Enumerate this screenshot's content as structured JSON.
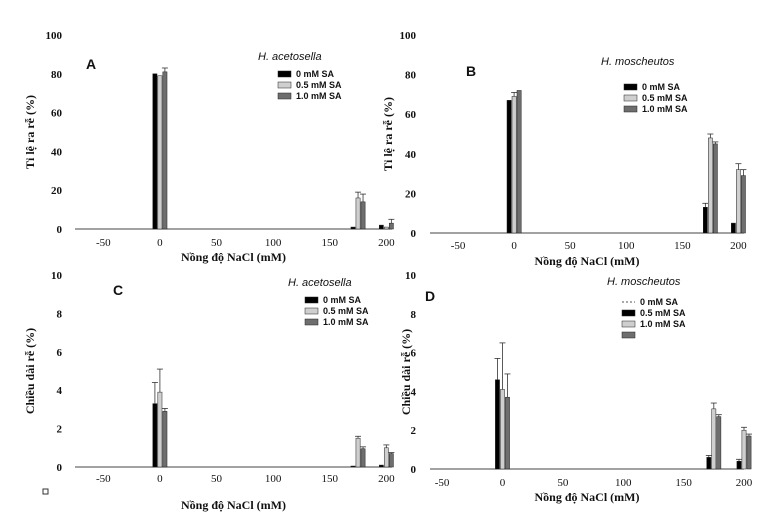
{
  "chart_data": [
    {
      "type": "bar",
      "panel_label": "A",
      "title": "H. acetosella",
      "xlabel": "Nồng độ NaCl (mM)",
      "ylabel": "Tỉ lệ ra rễ (%)",
      "xlim": [
        -75,
        205
      ],
      "ylim": [
        0,
        100
      ],
      "xticks": [
        -50,
        0,
        50,
        100,
        150,
        200
      ],
      "yticks": [
        0,
        20,
        40,
        60,
        80,
        100
      ],
      "legend_position": "top-right",
      "colors": [
        "#000000",
        "#cfcfcf",
        "#6e6e6e"
      ],
      "categories": [
        0,
        175,
        200
      ],
      "series": [
        {
          "name": "0 mM SA",
          "values": [
            80,
            1,
            2
          ],
          "errors": [
            0,
            0,
            0
          ]
        },
        {
          "name": "0.5 mM SA",
          "values": [
            79,
            16,
            1
          ],
          "errors": [
            0,
            3,
            0
          ]
        },
        {
          "name": "1.0 mM SA",
          "values": [
            81,
            14,
            3
          ],
          "errors": [
            2,
            4,
            2
          ]
        }
      ]
    },
    {
      "type": "bar",
      "panel_label": "B",
      "title": "H. moscheutos",
      "xlabel": "Nồng độ NaCl (mM)",
      "ylabel": "Tỉ lệ ra rễ (%)",
      "xlim": [
        -75,
        205
      ],
      "ylim": [
        0,
        100
      ],
      "xticks": [
        -50,
        0,
        50,
        100,
        150,
        200
      ],
      "yticks": [
        0,
        20,
        40,
        60,
        80,
        100
      ],
      "legend_position": "top-right",
      "colors": [
        "#000000",
        "#cfcfcf",
        "#6e6e6e"
      ],
      "categories": [
        0,
        175,
        200
      ],
      "series": [
        {
          "name": "0 mM SA",
          "values": [
            67,
            13,
            5
          ],
          "errors": [
            0,
            2,
            0
          ]
        },
        {
          "name": "0.5 mM SA",
          "values": [
            69,
            48,
            32
          ],
          "errors": [
            2,
            2,
            3
          ]
        },
        {
          "name": "1.0 mM SA",
          "values": [
            72,
            45,
            29
          ],
          "errors": [
            0,
            1,
            3
          ]
        }
      ]
    },
    {
      "type": "bar",
      "panel_label": "C",
      "title": "H. acetosella",
      "xlabel": "Nồng độ NaCl (mM)",
      "ylabel": "Chiều dài rễ (%)",
      "xlim": [
        -75,
        205
      ],
      "ylim": [
        0,
        10
      ],
      "xticks": [
        -50,
        0,
        50,
        100,
        150,
        200
      ],
      "yticks": [
        0,
        2,
        4,
        6,
        8,
        10
      ],
      "legend_position": "top-right",
      "colors": [
        "#000000",
        "#cfcfcf",
        "#6e6e6e"
      ],
      "categories": [
        0,
        175,
        200
      ],
      "series": [
        {
          "name": "0 mM SA",
          "values": [
            3.3,
            0.05,
            0.1
          ],
          "errors": [
            1.1,
            0,
            0
          ]
        },
        {
          "name": "0.5 mM SA",
          "values": [
            3.9,
            1.5,
            1.0
          ],
          "errors": [
            1.2,
            0.1,
            0.15
          ]
        },
        {
          "name": "1.0 mM SA",
          "values": [
            2.9,
            0.95,
            0.7
          ],
          "errors": [
            0.15,
            0.1,
            0.05
          ]
        }
      ]
    },
    {
      "type": "bar",
      "panel_label": "D",
      "title": "H. moscheutos",
      "xlabel": "Nồng độ NaCl (mM)",
      "ylabel": "Chiều dài rễ (%)",
      "xlim": [
        -60,
        200
      ],
      "ylim": [
        0,
        10
      ],
      "xticks": [
        -50,
        0,
        50,
        100,
        150,
        200
      ],
      "yticks": [
        0,
        2,
        4,
        6,
        8,
        10
      ],
      "legend_position": "top-right",
      "colors": [
        "#000000",
        "#cfcfcf",
        "#6e6e6e"
      ],
      "legend_labels": [
        "0 mM SA",
        "0.5 mM SA",
        "1.0 mM SA"
      ],
      "categories": [
        0,
        175,
        200
      ],
      "series": [
        {
          "name": "0 mM SA",
          "values": [
            4.6,
            0.6,
            0.4
          ],
          "errors": [
            1.1,
            0.1,
            0.1
          ]
        },
        {
          "name": "0.5 mM SA",
          "values": [
            4.1,
            3.1,
            2.0
          ],
          "errors": [
            2.4,
            0.3,
            0.15
          ]
        },
        {
          "name": "1.0 mM SA",
          "values": [
            3.7,
            2.7,
            1.7
          ],
          "errors": [
            1.2,
            0.1,
            0.1
          ]
        }
      ]
    }
  ]
}
